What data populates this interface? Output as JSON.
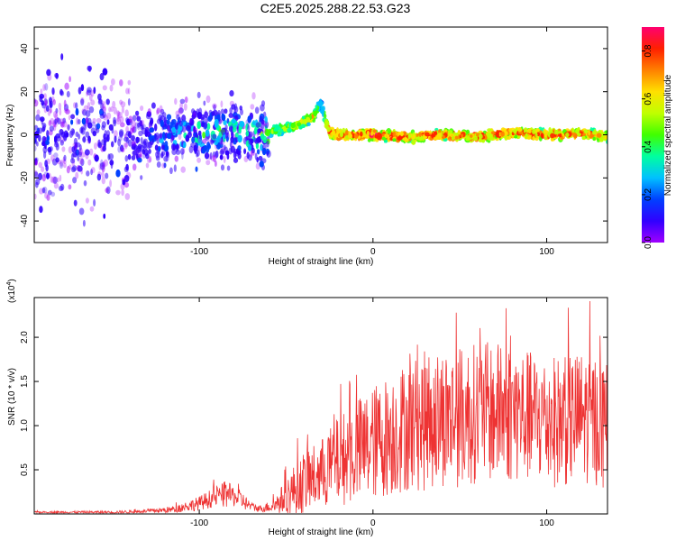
{
  "title": "C2E5.2025.288.22.53.G23",
  "chart_data": [
    {
      "type": "heatmap",
      "name": "spectrogram",
      "xlabel": "Height of straight line (km)",
      "ylabel": "Frequency (Hz)",
      "xlim": [
        -195,
        135
      ],
      "ylim": [
        -50,
        50
      ],
      "xticks": [
        -100,
        0,
        100
      ],
      "yticks": [
        -40,
        -20,
        0,
        20,
        40
      ],
      "colorbar": {
        "label": "Normalized spectral amplitude",
        "range": [
          0,
          0.9
        ],
        "ticks": [
          "0.0",
          "0.2",
          "0.4",
          "0.6",
          "0.8"
        ],
        "colors": [
          "#a000ff",
          "#3000ff",
          "#0040ff",
          "#00c0ff",
          "#00ffa0",
          "#40ff00",
          "#c0ff00",
          "#ffe000",
          "#ff8000",
          "#ff2000",
          "#ff0070"
        ]
      },
      "trace": {
        "x": [
          -195,
          -160,
          -140,
          -120,
          -100,
          -80,
          -70,
          -60,
          -45,
          -35,
          -30,
          -25,
          -20,
          0,
          20,
          40,
          60,
          80,
          100,
          120,
          135
        ],
        "freq": [
          -3,
          -2,
          -2,
          -1,
          1,
          2,
          0,
          1,
          4,
          8,
          15,
          1,
          0,
          0,
          -1,
          0,
          -1,
          1,
          0,
          1,
          -1
        ],
        "peak_amplitude": [
          0.15,
          0.12,
          0.05,
          0.3,
          0.45,
          0.45,
          0.55,
          0.55,
          0.6,
          0.7,
          0.3,
          0.85,
          0.85,
          0.9,
          0.85,
          0.85,
          0.85,
          0.85,
          0.85,
          0.85,
          0.7
        ]
      }
    },
    {
      "type": "line",
      "name": "snr",
      "xlabel": "Height of straight line (km)",
      "ylabel": "SNR (10 * v/v)",
      "scale_label": "(x10",
      "scale_exp": "4",
      "scale_close": ")",
      "xlim": [
        -195,
        135
      ],
      "ylim": [
        0,
        2.45
      ],
      "xticks": [
        -100,
        0,
        100
      ],
      "yticks": [
        "0.5",
        "1.0",
        "1.5",
        "2.0"
      ],
      "color": "#ee3333",
      "envelope": {
        "x": [
          -195,
          -150,
          -130,
          -115,
          -100,
          -90,
          -85,
          -80,
          -75,
          -70,
          -65,
          -60,
          -55,
          -50,
          -45,
          -40,
          -30,
          -20,
          -10,
          0,
          10,
          20,
          30,
          40,
          50,
          60,
          70,
          80,
          90,
          100,
          110,
          120,
          130,
          135
        ],
        "mean": [
          0.02,
          0.02,
          0.03,
          0.05,
          0.12,
          0.2,
          0.22,
          0.2,
          0.15,
          0.08,
          0.06,
          0.08,
          0.12,
          0.2,
          0.28,
          0.35,
          0.45,
          0.6,
          0.7,
          0.8,
          0.9,
          1.0,
          1.05,
          1.1,
          1.1,
          1.15,
          1.15,
          1.15,
          1.1,
          1.05,
          1.05,
          1.1,
          1.05,
          1.0
        ],
        "spread": [
          0.01,
          0.015,
          0.02,
          0.04,
          0.08,
          0.12,
          0.15,
          0.12,
          0.1,
          0.05,
          0.04,
          0.06,
          0.12,
          0.2,
          0.3,
          0.35,
          0.4,
          0.5,
          0.6,
          0.65,
          0.7,
          0.75,
          0.8,
          0.8,
          0.8,
          0.8,
          0.8,
          0.8,
          0.75,
          0.75,
          0.75,
          0.75,
          0.75,
          0.75
        ]
      }
    }
  ]
}
